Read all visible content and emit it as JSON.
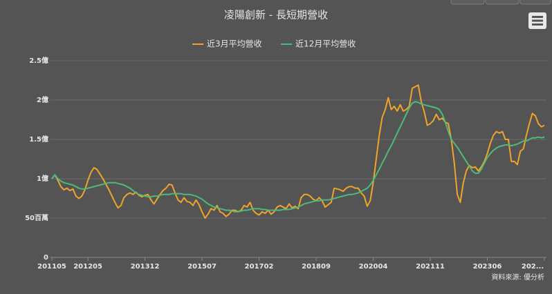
{
  "chart_data": {
    "type": "line",
    "title": "凌陽創新 - 長短期營收",
    "categories": [
      "201105",
      null,
      null,
      null,
      null,
      null,
      null,
      null,
      null,
      null,
      null,
      null,
      "201205",
      null,
      null,
      null,
      null,
      null,
      null,
      null,
      null,
      null,
      null,
      null,
      null,
      null,
      null,
      null,
      null,
      null,
      null,
      "201312",
      null,
      null,
      null,
      null,
      null,
      null,
      null,
      null,
      null,
      null,
      null,
      null,
      null,
      null,
      null,
      null,
      null,
      null,
      "201507",
      null,
      null,
      null,
      null,
      null,
      null,
      null,
      null,
      null,
      null,
      null,
      null,
      null,
      null,
      null,
      null,
      null,
      null,
      "201702",
      null,
      null,
      null,
      null,
      null,
      null,
      null,
      null,
      null,
      null,
      null,
      null,
      null,
      null,
      null,
      null,
      null,
      null,
      "201809",
      null,
      null,
      null,
      null,
      null,
      null,
      null,
      null,
      null,
      null,
      null,
      null,
      null,
      null,
      null,
      null,
      null,
      null,
      "202004",
      null,
      null,
      null,
      null,
      null,
      null,
      null,
      null,
      null,
      null,
      null,
      null,
      null,
      null,
      null,
      null,
      null,
      null,
      "202111",
      null,
      null,
      null,
      null,
      null,
      null,
      null,
      null,
      null,
      null,
      null,
      null,
      null,
      null,
      null,
      null,
      null,
      null,
      "202306",
      null,
      null,
      null,
      null,
      null,
      null,
      null,
      null,
      null,
      null,
      null,
      null,
      null,
      null,
      null,
      null,
      null,
      null,
      "202..."
    ],
    "series": [
      {
        "name": "近3月平均營收",
        "color": "#f0a42a",
        "values": [
          1.0,
          1.05,
          0.98,
          0.9,
          0.86,
          0.88,
          0.85,
          0.87,
          0.78,
          0.75,
          0.78,
          0.86,
          0.98,
          1.08,
          1.14,
          1.12,
          1.06,
          1.0,
          0.93,
          0.86,
          0.78,
          0.7,
          0.63,
          0.66,
          0.76,
          0.8,
          0.82,
          0.8,
          0.83,
          0.79,
          0.77,
          0.79,
          0.8,
          0.73,
          0.68,
          0.74,
          0.8,
          0.85,
          0.88,
          0.93,
          0.92,
          0.82,
          0.73,
          0.7,
          0.76,
          0.71,
          0.7,
          0.66,
          0.73,
          0.67,
          0.58,
          0.5,
          0.55,
          0.62,
          0.6,
          0.66,
          0.58,
          0.56,
          0.52,
          0.55,
          0.6,
          0.6,
          0.58,
          0.6,
          0.66,
          0.64,
          0.7,
          0.6,
          0.56,
          0.54,
          0.58,
          0.56,
          0.6,
          0.55,
          0.58,
          0.64,
          0.66,
          0.64,
          0.62,
          0.68,
          0.63,
          0.65,
          0.62,
          0.76,
          0.8,
          0.8,
          0.78,
          0.74,
          0.72,
          0.76,
          0.72,
          0.64,
          0.67,
          0.7,
          0.88,
          0.87,
          0.86,
          0.84,
          0.88,
          0.9,
          0.9,
          0.88,
          0.88,
          0.82,
          0.78,
          0.65,
          0.72,
          0.95,
          1.25,
          1.55,
          1.78,
          1.88,
          2.03,
          1.88,
          1.92,
          1.86,
          1.94,
          1.86,
          1.88,
          1.92,
          2.15,
          2.17,
          2.19,
          1.98,
          1.85,
          1.68,
          1.7,
          1.74,
          1.82,
          1.75,
          1.77,
          1.72,
          1.7,
          1.5,
          1.2,
          0.8,
          0.7,
          0.95,
          1.1,
          1.17,
          1.14,
          1.15,
          1.1,
          1.15,
          1.22,
          1.32,
          1.45,
          1.55,
          1.6,
          1.58,
          1.6,
          1.5,
          1.5,
          1.22,
          1.22,
          1.18,
          1.35,
          1.38,
          1.55,
          1.7,
          1.83,
          1.8,
          1.7,
          1.66,
          1.68
        ]
      },
      {
        "name": "近12月平均營收",
        "color": "#4dbb7a",
        "values": [
          1.0,
          1.05,
          1.0,
          0.97,
          0.95,
          0.94,
          0.93,
          0.92,
          0.9,
          0.88,
          0.87,
          0.87,
          0.88,
          0.89,
          0.9,
          0.91,
          0.92,
          0.93,
          0.94,
          0.95,
          0.95,
          0.95,
          0.94,
          0.93,
          0.92,
          0.9,
          0.88,
          0.85,
          0.82,
          0.8,
          0.79,
          0.78,
          0.77,
          0.77,
          0.78,
          0.78,
          0.79,
          0.8,
          0.8,
          0.8,
          0.81,
          0.81,
          0.81,
          0.81,
          0.8,
          0.8,
          0.8,
          0.79,
          0.78,
          0.76,
          0.74,
          0.71,
          0.68,
          0.66,
          0.64,
          0.63,
          0.62,
          0.61,
          0.6,
          0.6,
          0.59,
          0.58,
          0.58,
          0.59,
          0.6,
          0.6,
          0.61,
          0.62,
          0.62,
          0.62,
          0.61,
          0.61,
          0.6,
          0.6,
          0.6,
          0.6,
          0.6,
          0.61,
          0.61,
          0.61,
          0.62,
          0.63,
          0.64,
          0.66,
          0.68,
          0.69,
          0.7,
          0.71,
          0.72,
          0.72,
          0.73,
          0.73,
          0.73,
          0.74,
          0.75,
          0.76,
          0.77,
          0.78,
          0.79,
          0.8,
          0.8,
          0.81,
          0.82,
          0.84,
          0.86,
          0.88,
          0.92,
          0.98,
          1.05,
          1.12,
          1.2,
          1.27,
          1.35,
          1.42,
          1.5,
          1.58,
          1.66,
          1.74,
          1.82,
          1.9,
          1.96,
          1.98,
          1.97,
          1.95,
          1.94,
          1.93,
          1.92,
          1.91,
          1.9,
          1.88,
          1.82,
          1.72,
          1.6,
          1.5,
          1.45,
          1.4,
          1.34,
          1.28,
          1.22,
          1.16,
          1.1,
          1.07,
          1.07,
          1.12,
          1.2,
          1.27,
          1.32,
          1.36,
          1.39,
          1.41,
          1.42,
          1.43,
          1.43,
          1.42,
          1.43,
          1.44,
          1.46,
          1.48,
          1.48,
          1.5,
          1.52,
          1.52,
          1.53,
          1.52,
          1.53
        ]
      }
    ],
    "ylim": [
      0,
      2.5
    ],
    "yticks": [
      0,
      {
        "value": 0.5,
        "label": "50百萬"
      },
      {
        "value": 1,
        "label": "1億"
      },
      {
        "value": 1.5,
        "label": "1.5億"
      },
      {
        "value": 2,
        "label": "2億"
      },
      {
        "value": 2.5,
        "label": "2.5億"
      }
    ],
    "grid": true,
    "source": "資料來源: 優分析"
  }
}
